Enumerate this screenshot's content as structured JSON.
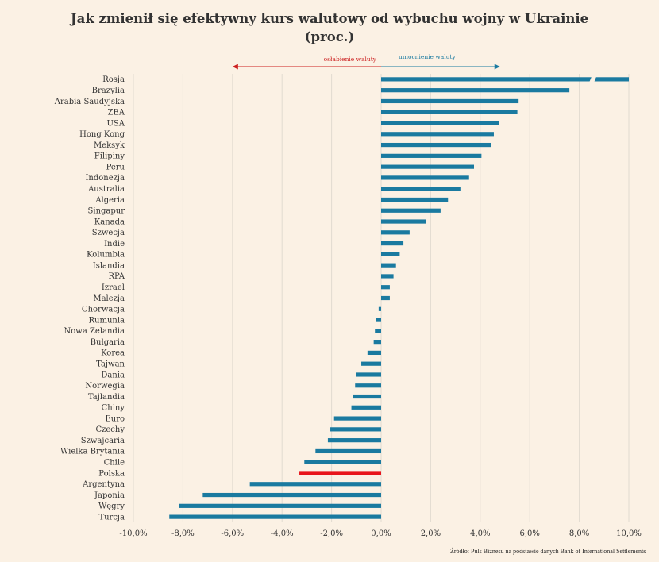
{
  "title_line1": "Jak zmienił się efektywny kurs walutowy od wybuchu wojny w Ukrainie",
  "title_line2": "(proc.)",
  "source": "Źródło: Puls Biznesu na podstawie danych Bank of International Settlements",
  "colors": {
    "bar": "#1a7aa0",
    "highlight": "#e8151b",
    "weak_arrow": "#cc1e1e",
    "strong_arrow": "#1a7aa0",
    "grid": "#e2dbd0",
    "background": "#fbf1e4"
  },
  "chart_data": {
    "type": "bar",
    "orientation": "horizontal",
    "xlim": [
      -10,
      10
    ],
    "grid": true,
    "x_ticks": [
      "-10,0%",
      "-8,0%",
      "-6,0%",
      "-4,0%",
      "-2,0%",
      "0,0%",
      "2,0%",
      "4,0%",
      "6,0%",
      "8,0%",
      "10,0%"
    ],
    "tick_values": [
      -10,
      -8,
      -6,
      -4,
      -2,
      0,
      2,
      4,
      6,
      8,
      10
    ],
    "annotations": {
      "weakening": "osłabienie waluty",
      "strengthening": "umocnienie waluty"
    },
    "weakening_arrow_range": [
      -6,
      0
    ],
    "strengthening_arrow_range": [
      0,
      4.8
    ],
    "highlighted_category": "Polska",
    "axis_break": {
      "category": "Rosja",
      "at": 8.5
    },
    "categories": [
      "Rosja",
      "Brazylia",
      "Arabia Saudyjska",
      "ZEA",
      "USA",
      "Hong Kong",
      "Meksyk",
      "Filipiny",
      "Peru",
      "Indonezja",
      "Australia",
      "Algeria",
      "Singapur",
      "Kanada",
      "Szwecja",
      "Indie",
      "Kolumbia",
      "Islandia",
      "RPA",
      "Izrael",
      "Malezja",
      "Chorwacja",
      "Rumunia",
      "Nowa Zelandia",
      "Bułgaria",
      "Korea",
      "Tajwan",
      "Dania",
      "Norwegia",
      "Tajlandia",
      "Chiny",
      "Euro",
      "Czechy",
      "Szwajcaria",
      "Wielka Brytania",
      "Chile",
      "Polska",
      "Argentyna",
      "Japonia",
      "Węgry",
      "Turcja"
    ],
    "values": [
      10.0,
      7.6,
      5.55,
      5.5,
      4.75,
      4.55,
      4.45,
      4.05,
      3.75,
      3.55,
      3.2,
      2.7,
      2.4,
      1.8,
      1.15,
      0.9,
      0.75,
      0.6,
      0.5,
      0.35,
      0.35,
      -0.1,
      -0.2,
      -0.25,
      -0.3,
      -0.55,
      -0.8,
      -1.0,
      -1.05,
      -1.15,
      -1.2,
      -1.9,
      -2.05,
      -2.15,
      -2.65,
      -3.1,
      -3.3,
      -5.3,
      -7.2,
      -8.15,
      -8.55
    ]
  }
}
